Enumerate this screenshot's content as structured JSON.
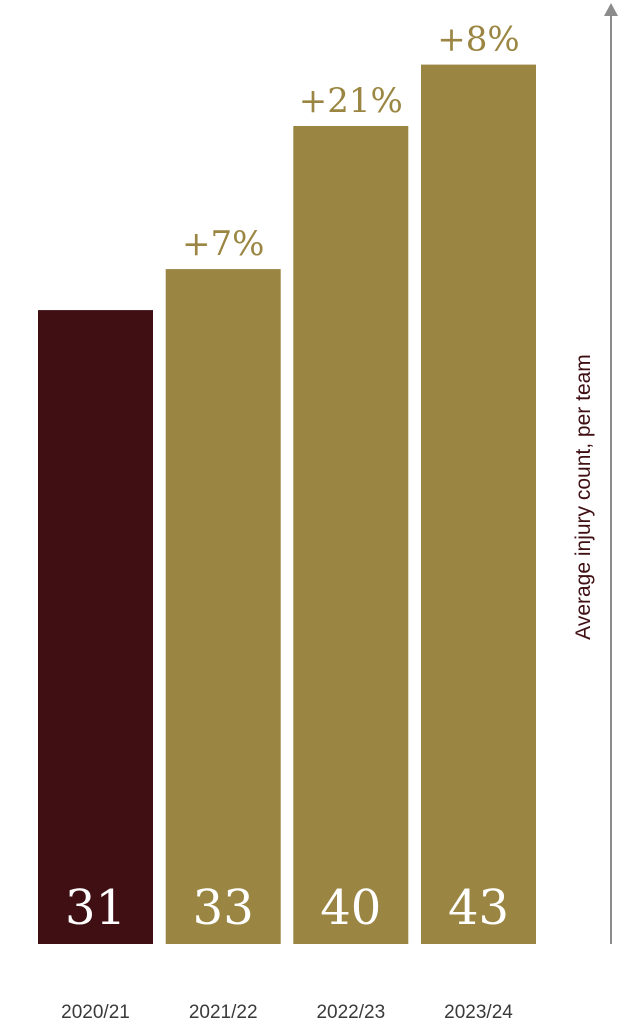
{
  "chart_data": {
    "type": "bar",
    "title": "",
    "xlabel": "",
    "ylabel": "Average injury count, per team",
    "categories": [
      "2020/21",
      "2021/22",
      "2022/23",
      "2023/24"
    ],
    "values": [
      31,
      33,
      40,
      43
    ],
    "value_labels": [
      "31",
      "33",
      "40",
      "43"
    ],
    "change_labels": [
      "",
      "+7%",
      "+21%",
      "+8%"
    ],
    "ylim": [
      0,
      45
    ],
    "grid": false,
    "legend": "none",
    "colors": {
      "baseline_bar": "#3f0f13",
      "bar": "#9a8642",
      "change_text": "#9a8642",
      "value_text": "#ffffff",
      "axis_label": "#3f0f13",
      "axis_arrow": "#8c8c8c",
      "tick_text": "#3a3a3a"
    }
  }
}
